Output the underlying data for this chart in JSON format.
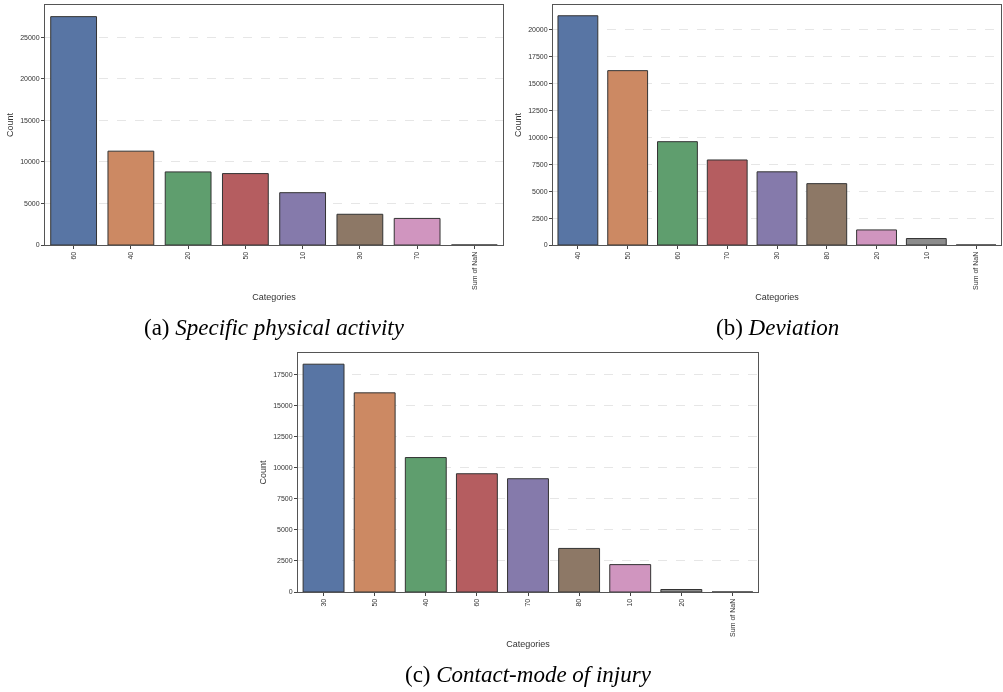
{
  "chart_data": [
    {
      "type": "bar",
      "xlabel": "Categories",
      "ylabel": "Count",
      "categories": [
        "60",
        "40",
        "20",
        "50",
        "10",
        "30",
        "70",
        "Sum of NaN"
      ],
      "values": [
        27500,
        11300,
        8800,
        8600,
        6300,
        3700,
        3200,
        0
      ],
      "colors": [
        "#5875a4",
        "#cc8963",
        "#5f9e6e",
        "#b55d60",
        "#857aab",
        "#8d7866",
        "#d095bf",
        "#333333"
      ],
      "ylim": [
        0,
        28900
      ],
      "yticks": [
        0,
        5000,
        10000,
        15000,
        20000,
        25000
      ],
      "grid": "y",
      "annotations": [
        "(a) Specific physical activity"
      ]
    },
    {
      "type": "bar",
      "xlabel": "Categories",
      "ylabel": "Count",
      "categories": [
        "40",
        "50",
        "60",
        "70",
        "30",
        "80",
        "20",
        "10",
        "Sum of NaN"
      ],
      "values": [
        21300,
        16200,
        9600,
        7900,
        6800,
        5700,
        1400,
        600,
        0
      ],
      "colors": [
        "#5875a4",
        "#cc8963",
        "#5f9e6e",
        "#b55d60",
        "#857aab",
        "#8d7866",
        "#d095bf",
        "#8c8c8c",
        "#333333"
      ],
      "ylim": [
        0,
        22300
      ],
      "yticks": [
        0,
        2500,
        5000,
        7500,
        10000,
        12500,
        15000,
        17500,
        20000
      ],
      "grid": "y",
      "annotations": [
        "(b) Deviation"
      ]
    },
    {
      "type": "bar",
      "xlabel": "Categories",
      "ylabel": "Count",
      "categories": [
        "30",
        "50",
        "40",
        "60",
        "70",
        "80",
        "10",
        "20",
        "Sum of NaN"
      ],
      "values": [
        18300,
        16000,
        10800,
        9500,
        9100,
        3500,
        2200,
        200,
        0
      ],
      "colors": [
        "#5875a4",
        "#cc8963",
        "#5f9e6e",
        "#b55d60",
        "#857aab",
        "#8d7866",
        "#d095bf",
        "#8c8c8c",
        "#333333"
      ],
      "ylim": [
        0,
        19200
      ],
      "yticks": [
        0,
        2500,
        5000,
        7500,
        10000,
        12500,
        15000,
        17500
      ],
      "grid": "y",
      "annotations": [
        "(c) Contact-mode of injury"
      ]
    }
  ]
}
